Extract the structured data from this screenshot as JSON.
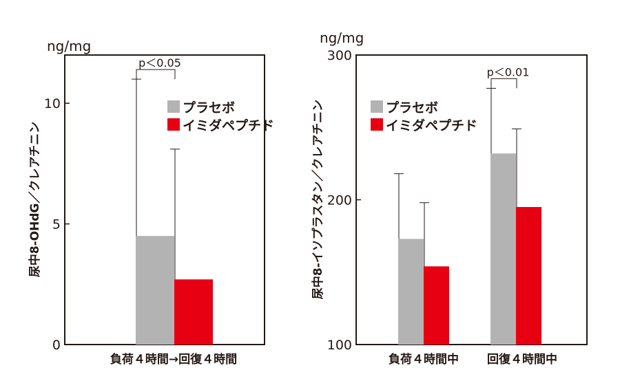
{
  "colors": {
    "placebo": "#b3b3b3",
    "drug": "#e60012",
    "ink": "#231815"
  },
  "chart_data": [
    {
      "type": "bar",
      "unit": "ng/mg",
      "ylabel": "尿中8-OHdG／クレアチニン",
      "categories": [
        "負荷４時間→回復４時間"
      ],
      "ylim": [
        0,
        12
      ],
      "yticks": [
        0,
        5,
        10
      ],
      "series": [
        {
          "name": "プラセボ",
          "values": [
            4.5
          ],
          "errors": [
            6.5
          ]
        },
        {
          "name": "イミダペプチド",
          "values": [
            2.7
          ],
          "errors": [
            5.4
          ]
        }
      ],
      "annotation": {
        "text": "p＜0.05"
      }
    },
    {
      "type": "bar",
      "unit": "ng/mg",
      "ylabel": "尿中8-イソプラスタン／クレアチニン",
      "categories": [
        "負荷４時間中",
        "回復４時間中"
      ],
      "ylim": [
        100,
        300
      ],
      "yticks": [
        100,
        200,
        300
      ],
      "series": [
        {
          "name": "プラセボ",
          "values": [
            173,
            232
          ],
          "errors": [
            45,
            45
          ]
        },
        {
          "name": "イミダペプチド",
          "values": [
            154,
            195
          ],
          "errors": [
            44,
            54
          ]
        }
      ],
      "annotation": {
        "text": "p＜0.01"
      }
    }
  ]
}
